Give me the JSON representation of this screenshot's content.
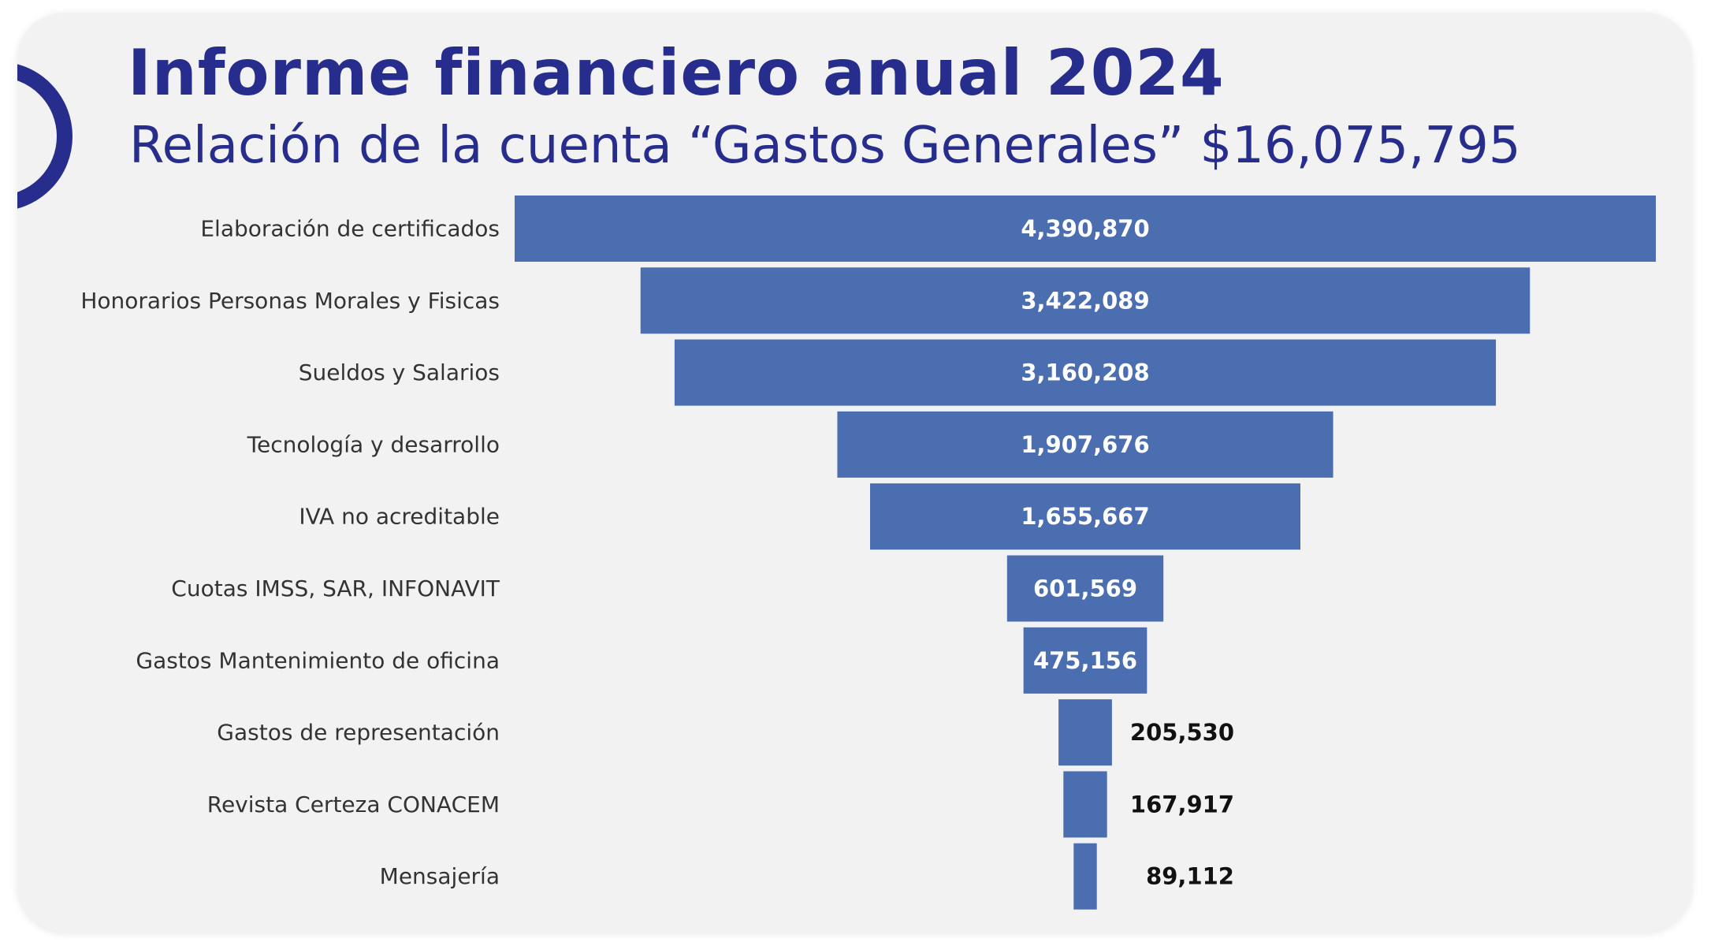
{
  "header": {
    "title": "Informe financiero anual 2024",
    "subtitle": "Relación de la cuenta “Gastos Generales” $16,075,795"
  },
  "colors": {
    "accent": "#262d8c",
    "bar": "#4a6eb0",
    "background": "#f2f2f3"
  },
  "chart_data": {
    "type": "bar",
    "orientation": "horizontal-funnel",
    "categories": [
      "Elaboración de certificados",
      "Honorarios Personas Morales y Fisicas",
      "Sueldos y Salarios",
      "Tecnología y desarrollo",
      "IVA no acreditable",
      "Cuotas IMSS, SAR, INFONAVIT",
      "Gastos Mantenimiento de oficina",
      "Gastos de representación",
      "Revista Certeza CONACEM",
      "Mensajería"
    ],
    "values": [
      4390870,
      3422089,
      3160208,
      1907676,
      1655667,
      601569,
      475156,
      205530,
      167917,
      89112
    ],
    "data_labels": [
      "4,390,870",
      "3,422,089",
      "3,160,208",
      "1,907,676",
      "1,655,667",
      "601,569",
      "475,156",
      "205,530",
      "167,917",
      "89,112"
    ],
    "label_position": [
      "inside",
      "inside",
      "inside",
      "inside",
      "inside",
      "inside",
      "inside",
      "outside",
      "outside",
      "outside"
    ],
    "grid": false,
    "legend": "none"
  }
}
